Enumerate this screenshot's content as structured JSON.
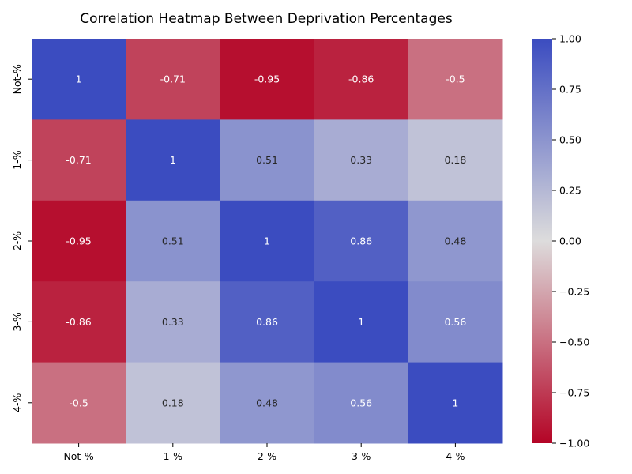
{
  "chart_data": {
    "type": "heatmap",
    "title": "Correlation Heatmap Between Deprivation Percentages",
    "xlabel": "",
    "ylabel": "",
    "x_categories": [
      "Not-%",
      "1-%",
      "2-%",
      "3-%",
      "4-%"
    ],
    "y_categories": [
      "Not-%",
      "1-%",
      "2-%",
      "3-%",
      "4-%"
    ],
    "values": [
      [
        1,
        -0.71,
        -0.95,
        -0.86,
        -0.5
      ],
      [
        -0.71,
        1,
        0.51,
        0.33,
        0.18
      ],
      [
        -0.95,
        0.51,
        1,
        0.86,
        0.48
      ],
      [
        -0.86,
        0.33,
        0.86,
        1,
        0.56
      ],
      [
        -0.5,
        0.18,
        0.48,
        0.56,
        1
      ]
    ],
    "value_labels": [
      [
        "1",
        "-0.71",
        "-0.95",
        "-0.86",
        "-0.5"
      ],
      [
        "-0.71",
        "1",
        "0.51",
        "0.33",
        "0.18"
      ],
      [
        "-0.95",
        "0.51",
        "1",
        "0.86",
        "0.48"
      ],
      [
        "-0.86",
        "0.33",
        "0.86",
        "1",
        "0.56"
      ],
      [
        "-0.5",
        "0.18",
        "0.48",
        "0.56",
        "1"
      ]
    ],
    "colormap": "coolwarm",
    "colormap_stops": [
      "#b40426",
      "#dddcdc",
      "#3b4cc0"
    ],
    "vmin": -1,
    "vmax": 1,
    "colorbar_ticks": [
      "1.00",
      "0.75",
      "0.50",
      "0.25",
      "0.00",
      "−0.25",
      "−0.50",
      "−0.75",
      "−1.00"
    ],
    "colorbar_tick_values": [
      1,
      0.75,
      0.5,
      0.25,
      0,
      -0.25,
      -0.5,
      -0.75,
      -1
    ],
    "colorbar_position": "right",
    "grid": false
  }
}
